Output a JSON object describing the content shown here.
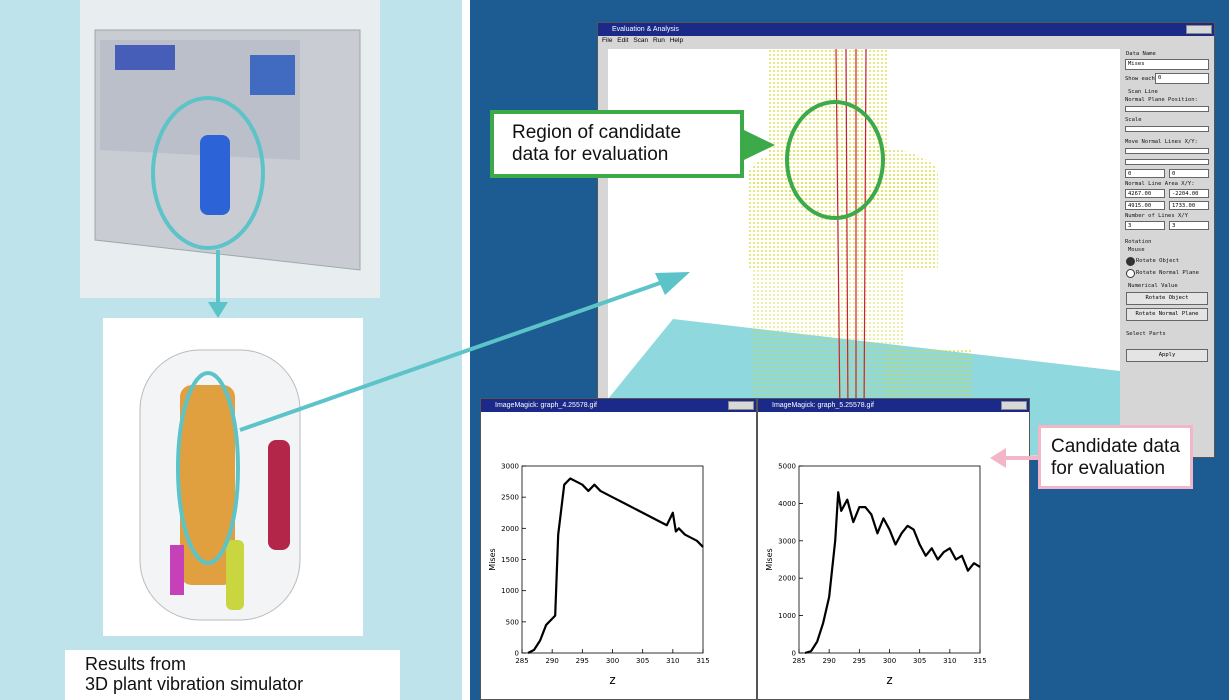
{
  "left_panel": {
    "caption": [
      "Results from",
      "3D plant vibration simulator"
    ]
  },
  "callouts": {
    "region": [
      "Region of candidate",
      "data for evaluation"
    ],
    "candidate": [
      "Candidate data",
      "for evaluation"
    ]
  },
  "main_window": {
    "title": "Evaluation & Analysis",
    "menu": [
      "File",
      "Edit",
      "Scan",
      "Run",
      "Help"
    ],
    "panel": {
      "data_name": "Data Name",
      "data_value": "Mises",
      "show_each": "Show each:",
      "show_each_value": "0",
      "scan_line": "Scan Line",
      "normal_plane_position": "Normal Plane Position:",
      "scale": "Scale",
      "move_lines": "Move Normal Lines X/Y:",
      "move_x": "0",
      "move_y": "0",
      "area": "Normal Line Area X/Y:",
      "area_values": [
        "4267.00",
        "-2204.00",
        "4915.00",
        "1733.00"
      ],
      "number_lines": "Number of Lines X/Y",
      "number_x": "3",
      "number_y": "3",
      "rotation": "Rotation",
      "mouse": "Mouse",
      "radio_object": "Rotate Object",
      "radio_plane": "Rotate Normal Plane",
      "numerical": "Numerical Value",
      "btn_object": "Rotate Object",
      "btn_plane": "Rotate Normal Plane",
      "select_parts": "Select Parts",
      "apply": "Apply"
    }
  },
  "graph_windows": [
    {
      "title": "ImageMagick: graph_4.25578.gif"
    },
    {
      "title": "ImageMagick: graph_5.25578.gif"
    }
  ],
  "chart_data": [
    {
      "type": "line",
      "xlabel": "z",
      "ylabel": "Mises",
      "color": "#000000",
      "x": [
        286,
        287,
        288,
        289,
        290,
        290.5,
        291,
        292,
        293,
        294,
        295,
        296,
        297,
        298,
        300,
        302,
        304,
        306,
        308,
        309,
        310,
        310.5,
        311,
        312,
        313,
        314,
        315
      ],
      "values": [
        0,
        50,
        200,
        450,
        550,
        600,
        1900,
        2700,
        2800,
        2750,
        2700,
        2600,
        2700,
        2600,
        2500,
        2400,
        2300,
        2200,
        2100,
        2050,
        2250,
        1950,
        2000,
        1900,
        1850,
        1800,
        1700
      ],
      "xlim": [
        285,
        315
      ],
      "xticks": [
        285,
        290,
        295,
        300,
        305,
        310,
        315
      ],
      "ylim": [
        0,
        3000
      ],
      "yticks": [
        0,
        500,
        1000,
        1500,
        2000,
        2500,
        3000
      ]
    },
    {
      "type": "line",
      "xlabel": "z",
      "ylabel": "Mises",
      "color": "#000000",
      "x": [
        286,
        287,
        288,
        289,
        290,
        291,
        291.5,
        292,
        293,
        294,
        295,
        296,
        297,
        298,
        299,
        300,
        301,
        302,
        303,
        304,
        305,
        306,
        307,
        308,
        309,
        310,
        311,
        312,
        313,
        314,
        315
      ],
      "values": [
        0,
        50,
        300,
        800,
        1500,
        3000,
        4300,
        3800,
        4100,
        3500,
        3900,
        3900,
        3700,
        3200,
        3600,
        3300,
        2900,
        3200,
        3400,
        3300,
        2900,
        2600,
        2800,
        2500,
        2700,
        2800,
        2500,
        2600,
        2200,
        2400,
        2300
      ],
      "xlim": [
        285,
        315
      ],
      "xticks": [
        285,
        290,
        295,
        300,
        305,
        310,
        315
      ],
      "ylim": [
        0,
        5000
      ],
      "yticks": [
        0,
        1000,
        2000,
        3000,
        4000,
        5000
      ]
    }
  ]
}
